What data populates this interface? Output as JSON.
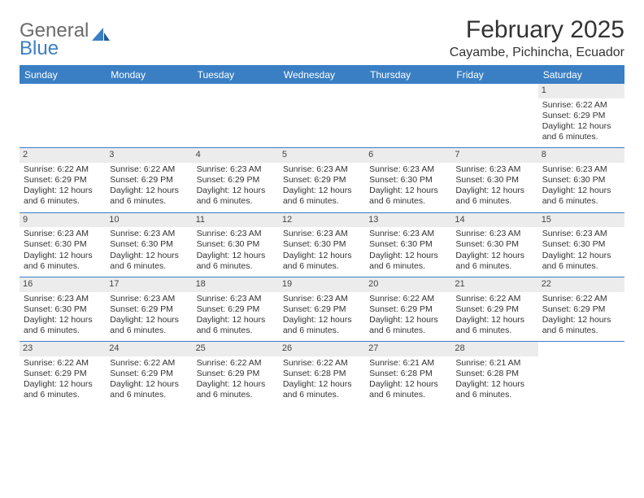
{
  "brand": {
    "word1": "General",
    "word2": "Blue"
  },
  "title": "February 2025",
  "location": "Cayambe, Pichincha, Ecuador",
  "colors": {
    "accent": "#3a7fc4",
    "header_bg": "#3a7fc4",
    "header_fg": "#ffffff",
    "daynum_bg": "#ececec",
    "text": "#333333",
    "logo_gray": "#6b6b6b"
  },
  "weekdays": [
    "Sunday",
    "Monday",
    "Tuesday",
    "Wednesday",
    "Thursday",
    "Friday",
    "Saturday"
  ],
  "weeks": [
    [
      null,
      null,
      null,
      null,
      null,
      null,
      {
        "n": "1",
        "sr": "6:22 AM",
        "ss": "6:29 PM",
        "dl": "12 hours and 6 minutes."
      }
    ],
    [
      {
        "n": "2",
        "sr": "6:22 AM",
        "ss": "6:29 PM",
        "dl": "12 hours and 6 minutes."
      },
      {
        "n": "3",
        "sr": "6:22 AM",
        "ss": "6:29 PM",
        "dl": "12 hours and 6 minutes."
      },
      {
        "n": "4",
        "sr": "6:23 AM",
        "ss": "6:29 PM",
        "dl": "12 hours and 6 minutes."
      },
      {
        "n": "5",
        "sr": "6:23 AM",
        "ss": "6:29 PM",
        "dl": "12 hours and 6 minutes."
      },
      {
        "n": "6",
        "sr": "6:23 AM",
        "ss": "6:30 PM",
        "dl": "12 hours and 6 minutes."
      },
      {
        "n": "7",
        "sr": "6:23 AM",
        "ss": "6:30 PM",
        "dl": "12 hours and 6 minutes."
      },
      {
        "n": "8",
        "sr": "6:23 AM",
        "ss": "6:30 PM",
        "dl": "12 hours and 6 minutes."
      }
    ],
    [
      {
        "n": "9",
        "sr": "6:23 AM",
        "ss": "6:30 PM",
        "dl": "12 hours and 6 minutes."
      },
      {
        "n": "10",
        "sr": "6:23 AM",
        "ss": "6:30 PM",
        "dl": "12 hours and 6 minutes."
      },
      {
        "n": "11",
        "sr": "6:23 AM",
        "ss": "6:30 PM",
        "dl": "12 hours and 6 minutes."
      },
      {
        "n": "12",
        "sr": "6:23 AM",
        "ss": "6:30 PM",
        "dl": "12 hours and 6 minutes."
      },
      {
        "n": "13",
        "sr": "6:23 AM",
        "ss": "6:30 PM",
        "dl": "12 hours and 6 minutes."
      },
      {
        "n": "14",
        "sr": "6:23 AM",
        "ss": "6:30 PM",
        "dl": "12 hours and 6 minutes."
      },
      {
        "n": "15",
        "sr": "6:23 AM",
        "ss": "6:30 PM",
        "dl": "12 hours and 6 minutes."
      }
    ],
    [
      {
        "n": "16",
        "sr": "6:23 AM",
        "ss": "6:30 PM",
        "dl": "12 hours and 6 minutes."
      },
      {
        "n": "17",
        "sr": "6:23 AM",
        "ss": "6:29 PM",
        "dl": "12 hours and 6 minutes."
      },
      {
        "n": "18",
        "sr": "6:23 AM",
        "ss": "6:29 PM",
        "dl": "12 hours and 6 minutes."
      },
      {
        "n": "19",
        "sr": "6:23 AM",
        "ss": "6:29 PM",
        "dl": "12 hours and 6 minutes."
      },
      {
        "n": "20",
        "sr": "6:22 AM",
        "ss": "6:29 PM",
        "dl": "12 hours and 6 minutes."
      },
      {
        "n": "21",
        "sr": "6:22 AM",
        "ss": "6:29 PM",
        "dl": "12 hours and 6 minutes."
      },
      {
        "n": "22",
        "sr": "6:22 AM",
        "ss": "6:29 PM",
        "dl": "12 hours and 6 minutes."
      }
    ],
    [
      {
        "n": "23",
        "sr": "6:22 AM",
        "ss": "6:29 PM",
        "dl": "12 hours and 6 minutes."
      },
      {
        "n": "24",
        "sr": "6:22 AM",
        "ss": "6:29 PM",
        "dl": "12 hours and 6 minutes."
      },
      {
        "n": "25",
        "sr": "6:22 AM",
        "ss": "6:29 PM",
        "dl": "12 hours and 6 minutes."
      },
      {
        "n": "26",
        "sr": "6:22 AM",
        "ss": "6:28 PM",
        "dl": "12 hours and 6 minutes."
      },
      {
        "n": "27",
        "sr": "6:21 AM",
        "ss": "6:28 PM",
        "dl": "12 hours and 6 minutes."
      },
      {
        "n": "28",
        "sr": "6:21 AM",
        "ss": "6:28 PM",
        "dl": "12 hours and 6 minutes."
      },
      null
    ]
  ],
  "labels": {
    "sunrise": "Sunrise:",
    "sunset": "Sunset:",
    "daylight": "Daylight:"
  }
}
